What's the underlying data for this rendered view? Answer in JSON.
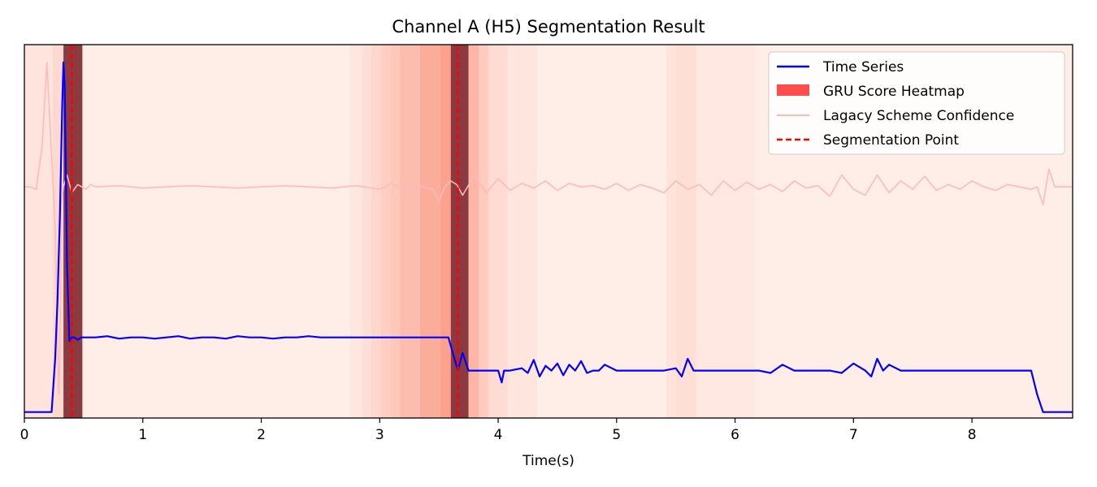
{
  "chart_data": {
    "type": "line",
    "title": "Channel A (H5)  Segmentation Result",
    "xlabel": "Time(s)",
    "ylabel": "",
    "xlim": [
      0,
      8.85
    ],
    "x_ticks": [
      0,
      1,
      2,
      3,
      4,
      5,
      6,
      7,
      8
    ],
    "grid": false,
    "legend_position": "top-right",
    "legend": [
      "Time Series",
      "GRU Score Heatmap",
      "Lagacy Scheme Confidence",
      "Segmentation Point"
    ],
    "segmentation_points": [
      0.4,
      3.66
    ],
    "heatmap": [
      {
        "start": 0.0,
        "end": 0.24,
        "intensity": 0.12
      },
      {
        "start": 0.24,
        "end": 0.33,
        "intensity": 0.2
      },
      {
        "start": 0.33,
        "end": 0.49,
        "intensity": 1.0
      },
      {
        "start": 0.49,
        "end": 2.75,
        "intensity": 0.05
      },
      {
        "start": 2.75,
        "end": 2.85,
        "intensity": 0.1
      },
      {
        "start": 2.85,
        "end": 2.93,
        "intensity": 0.16
      },
      {
        "start": 2.93,
        "end": 3.01,
        "intensity": 0.22
      },
      {
        "start": 3.01,
        "end": 3.09,
        "intensity": 0.28
      },
      {
        "start": 3.09,
        "end": 3.17,
        "intensity": 0.33
      },
      {
        "start": 3.17,
        "end": 3.34,
        "intensity": 0.4
      },
      {
        "start": 3.34,
        "end": 3.51,
        "intensity": 0.52
      },
      {
        "start": 3.51,
        "end": 3.6,
        "intensity": 0.6
      },
      {
        "start": 3.6,
        "end": 3.75,
        "intensity": 1.0
      },
      {
        "start": 3.75,
        "end": 3.84,
        "intensity": 0.45
      },
      {
        "start": 3.84,
        "end": 3.92,
        "intensity": 0.3
      },
      {
        "start": 3.92,
        "end": 4.08,
        "intensity": 0.18
      },
      {
        "start": 4.08,
        "end": 4.33,
        "intensity": 0.11
      },
      {
        "start": 4.33,
        "end": 5.42,
        "intensity": 0.05
      },
      {
        "start": 5.42,
        "end": 5.5,
        "intensity": 0.12
      },
      {
        "start": 5.5,
        "end": 5.67,
        "intensity": 0.16
      },
      {
        "start": 5.67,
        "end": 6.17,
        "intensity": 0.09
      },
      {
        "start": 6.17,
        "end": 8.85,
        "intensity": 0.05
      }
    ],
    "series": [
      {
        "name": "Time Series",
        "color": "#0000ff",
        "x": [
          0,
          0.23,
          0.26,
          0.28,
          0.3,
          0.32,
          0.33,
          0.34,
          0.36,
          0.38,
          0.4,
          0.42,
          0.45,
          0.48,
          0.5,
          0.6,
          0.7,
          0.8,
          0.9,
          1.0,
          1.1,
          1.2,
          1.3,
          1.4,
          1.5,
          1.6,
          1.7,
          1.8,
          1.9,
          2.0,
          2.1,
          2.2,
          2.3,
          2.4,
          2.5,
          2.6,
          2.7,
          2.8,
          2.9,
          3.0,
          3.1,
          3.2,
          3.3,
          3.4,
          3.5,
          3.58,
          3.66,
          3.7,
          3.75,
          3.8,
          3.9,
          4.0,
          4.03,
          4.05,
          4.1,
          4.2,
          4.25,
          4.3,
          4.35,
          4.4,
          4.45,
          4.5,
          4.55,
          4.6,
          4.65,
          4.7,
          4.75,
          4.8,
          4.85,
          4.9,
          5.0,
          5.1,
          5.2,
          5.3,
          5.4,
          5.5,
          5.55,
          5.6,
          5.65,
          5.7,
          5.8,
          5.9,
          6.0,
          6.1,
          6.2,
          6.3,
          6.4,
          6.5,
          6.6,
          6.7,
          6.8,
          6.9,
          7.0,
          7.1,
          7.15,
          7.2,
          7.25,
          7.3,
          7.4,
          7.5,
          7.6,
          7.7,
          7.8,
          7.9,
          8.0,
          8.1,
          8.2,
          8.3,
          8.4,
          8.5,
          8.55,
          8.6,
          8.85
        ],
        "y": [
          0.05,
          0.05,
          0.5,
          1.0,
          1.7,
          2.65,
          3.0,
          2.8,
          1.3,
          0.65,
          0.68,
          0.68,
          0.66,
          0.68,
          0.68,
          0.68,
          0.69,
          0.67,
          0.68,
          0.68,
          0.67,
          0.68,
          0.69,
          0.67,
          0.68,
          0.68,
          0.67,
          0.69,
          0.68,
          0.68,
          0.67,
          0.68,
          0.68,
          0.69,
          0.68,
          0.68,
          0.68,
          0.68,
          0.68,
          0.68,
          0.68,
          0.68,
          0.68,
          0.68,
          0.68,
          0.68,
          0.4,
          0.55,
          0.4,
          0.4,
          0.4,
          0.4,
          0.3,
          0.4,
          0.4,
          0.42,
          0.38,
          0.49,
          0.35,
          0.44,
          0.4,
          0.46,
          0.36,
          0.45,
          0.4,
          0.48,
          0.38,
          0.4,
          0.4,
          0.45,
          0.4,
          0.4,
          0.4,
          0.4,
          0.4,
          0.42,
          0.35,
          0.5,
          0.4,
          0.4,
          0.4,
          0.4,
          0.4,
          0.4,
          0.4,
          0.38,
          0.45,
          0.4,
          0.4,
          0.4,
          0.4,
          0.38,
          0.46,
          0.4,
          0.35,
          0.5,
          0.4,
          0.45,
          0.4,
          0.4,
          0.4,
          0.4,
          0.4,
          0.4,
          0.4,
          0.4,
          0.4,
          0.4,
          0.4,
          0.4,
          0.2,
          0.05,
          0.05
        ]
      },
      {
        "name": "Lagacy Scheme Confidence",
        "color": "#ffbbbb",
        "x": [
          0,
          0.05,
          0.1,
          0.15,
          0.19,
          0.22,
          0.26,
          0.29,
          0.3,
          0.31,
          0.33,
          0.36,
          0.4,
          0.45,
          0.52,
          0.56,
          0.6,
          0.8,
          1.0,
          1.2,
          1.4,
          1.6,
          1.8,
          2.0,
          2.2,
          2.4,
          2.6,
          2.8,
          3.0,
          3.1,
          3.2,
          3.3,
          3.4,
          3.45,
          3.5,
          3.55,
          3.6,
          3.65,
          3.7,
          3.8,
          3.9,
          4.0,
          4.1,
          4.2,
          4.3,
          4.4,
          4.5,
          4.6,
          4.7,
          4.8,
          4.9,
          5.0,
          5.1,
          5.2,
          5.3,
          5.4,
          5.5,
          5.6,
          5.7,
          5.8,
          5.9,
          6.0,
          6.1,
          6.2,
          6.3,
          6.4,
          6.5,
          6.6,
          6.7,
          6.8,
          6.9,
          7.0,
          7.1,
          7.2,
          7.3,
          7.4,
          7.5,
          7.6,
          7.7,
          7.8,
          7.9,
          8.0,
          8.1,
          8.2,
          8.3,
          8.4,
          8.5,
          8.55,
          8.6,
          8.65,
          8.7,
          8.8,
          8.85
        ],
        "y": [
          1.95,
          1.95,
          1.93,
          2.3,
          3.0,
          2.4,
          1.6,
          0.2,
          0.5,
          1.8,
          1.95,
          2.05,
          1.9,
          1.97,
          1.93,
          1.97,
          1.95,
          1.96,
          1.94,
          1.95,
          1.96,
          1.95,
          1.94,
          1.95,
          1.96,
          1.95,
          1.94,
          1.96,
          1.93,
          1.98,
          1.92,
          1.97,
          1.94,
          1.93,
          1.83,
          1.95,
          2.0,
          1.97,
          1.88,
          2.05,
          1.9,
          2.02,
          1.92,
          1.98,
          1.94,
          2.0,
          1.92,
          1.98,
          1.95,
          1.96,
          1.93,
          1.98,
          1.92,
          1.97,
          1.94,
          1.9,
          2.0,
          1.93,
          1.97,
          1.88,
          2.0,
          1.92,
          1.99,
          1.93,
          1.97,
          1.91,
          2.0,
          1.94,
          1.96,
          1.87,
          2.05,
          1.93,
          1.88,
          2.05,
          1.9,
          2.0,
          1.93,
          2.04,
          1.92,
          1.97,
          1.93,
          2.0,
          1.95,
          1.92,
          1.97,
          1.95,
          1.93,
          1.95,
          1.8,
          2.1,
          1.95,
          1.95,
          1.95
        ]
      }
    ]
  }
}
